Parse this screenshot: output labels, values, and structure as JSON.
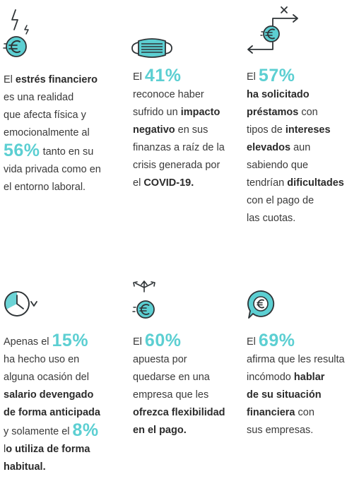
{
  "colors": {
    "accent": "#5ccfd2",
    "ink": "#2f3437",
    "text": "#3a3a3a"
  },
  "cards": [
    {
      "icon": "euro-coin-lightning-icon",
      "lines": [
        [
          {
            "t": "El "
          },
          {
            "t": "estrés financiero",
            "b": 1
          }
        ],
        [
          {
            "t": "es una realidad"
          }
        ],
        [
          {
            "t": "que afecta física y"
          }
        ],
        [
          {
            "t": "emocionalmente al"
          }
        ],
        [
          {
            "t": "56%",
            "p": 1
          },
          {
            "t": " tanto en su"
          }
        ],
        [
          {
            "t": "vida privada como en"
          }
        ],
        [
          {
            "t": "el entorno laboral."
          }
        ]
      ]
    },
    {
      "icon": "face-mask-icon",
      "lines": [
        [
          {
            "t": "El "
          },
          {
            "t": "41%",
            "p": 1
          }
        ],
        [
          {
            "t": "reconoce haber"
          }
        ],
        [
          {
            "t": "sufrido un "
          },
          {
            "t": "impacto",
            "b": 1
          }
        ],
        [
          {
            "t": "negativo",
            "b": 1
          },
          {
            "t": " en sus"
          }
        ],
        [
          {
            "t": "finanzas a raíz de la"
          }
        ],
        [
          {
            "t": "crisis generada por"
          }
        ],
        [
          {
            "t": "el "
          },
          {
            "t": "COVID-19.",
            "b": 1
          }
        ]
      ]
    },
    {
      "icon": "euro-coin-exchange-icon",
      "lines": [
        [
          {
            "t": "El "
          },
          {
            "t": "57%",
            "p": 1
          }
        ],
        [
          {
            "t": "ha solicitado",
            "b": 1
          }
        ],
        [
          {
            "t": "préstamos",
            "b": 1
          },
          {
            "t": " con"
          }
        ],
        [
          {
            "t": "tipos de "
          },
          {
            "t": "intereses",
            "b": 1
          }
        ],
        [
          {
            "t": "elevados",
            "b": 1
          },
          {
            "t": " aun"
          }
        ],
        [
          {
            "t": "sabiendo que"
          }
        ],
        [
          {
            "t": "tendrían "
          },
          {
            "t": "dificultades",
            "b": 1
          }
        ],
        [
          {
            "t": "con el pago de"
          }
        ],
        [
          {
            "t": "las cuotas."
          }
        ]
      ]
    },
    {
      "icon": "clock-icon",
      "lines": [
        [
          {
            "t": "Apenas el "
          },
          {
            "t": "15%",
            "p": 1
          }
        ],
        [
          {
            "t": "ha hecho uso en"
          }
        ],
        [
          {
            "t": "alguna ocasión del"
          }
        ],
        [
          {
            "t": "salario devengado",
            "b": 1
          }
        ],
        [
          {
            "t": "de forma anticipada",
            "b": 1
          }
        ],
        [
          {
            "t": "y solamente el "
          },
          {
            "t": "8%",
            "p": 1
          }
        ],
        [
          {
            "t": "l"
          },
          {
            "t": "o utiliza de forma",
            "b": 1
          }
        ],
        [
          {
            "t": "habitual.",
            "b": 1
          }
        ]
      ]
    },
    {
      "icon": "euro-coin-directions-icon",
      "lines": [
        [
          {
            "t": "El "
          },
          {
            "t": "60%",
            "p": 1
          }
        ],
        [
          {
            "t": "apuesta por"
          }
        ],
        [
          {
            "t": "quedarse en una"
          }
        ],
        [
          {
            "t": "empresa que les"
          }
        ],
        [
          {
            "t": "ofrezca flexibilidad",
            "b": 1
          }
        ],
        [
          {
            "t": "en el pago.",
            "b": 1
          }
        ]
      ]
    },
    {
      "icon": "euro-speech-bubble-icon",
      "lines": [
        [
          {
            "t": "El "
          },
          {
            "t": "69%",
            "p": 1
          }
        ],
        [
          {
            "t": "afirma que les resulta"
          }
        ],
        [
          {
            "t": "incómodo "
          },
          {
            "t": "hablar",
            "b": 1
          }
        ],
        [
          {
            "t": "de su situación",
            "b": 1
          }
        ],
        [
          {
            "t": "financiera",
            "b": 1
          },
          {
            "t": " con"
          }
        ],
        [
          {
            "t": "sus empresas."
          }
        ]
      ]
    }
  ]
}
